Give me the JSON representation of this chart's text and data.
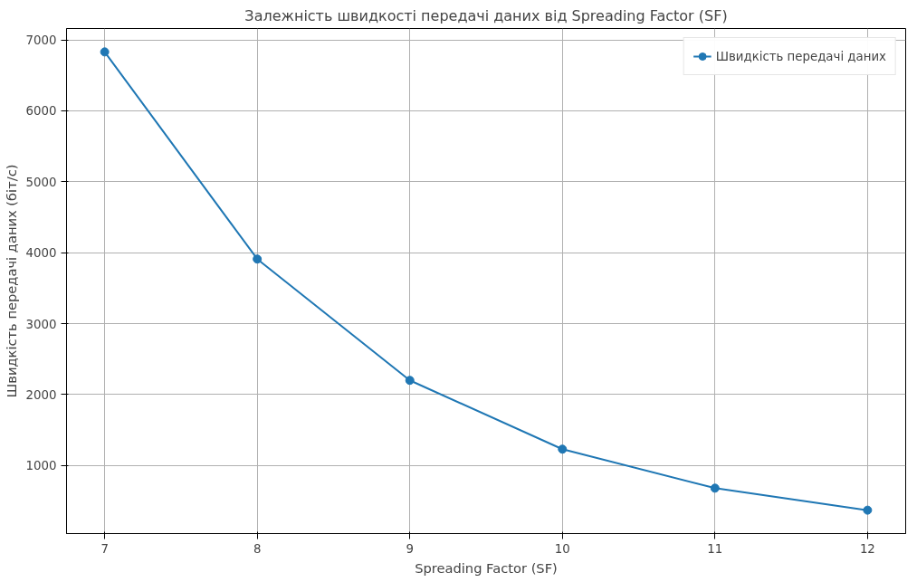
{
  "chart_data": {
    "type": "line",
    "title": "Залежність швидкості передачі даних від Spreading Factor (SF)",
    "xlabel": "Spreading Factor (SF)",
    "ylabel": "Швидкість передачі даних (біт/с)",
    "x": [
      7,
      8,
      9,
      10,
      11,
      12
    ],
    "series": [
      {
        "name": "Швидкість передачі даних",
        "color": "#1f77b4",
        "values": [
          6830,
          3910,
          2200,
          1230,
          680,
          370
        ]
      }
    ],
    "xlim": [
      6.75,
      12.25
    ],
    "xticks": [
      7,
      8,
      9,
      10,
      11,
      12
    ],
    "ylim": [
      40,
      7160
    ],
    "yticks": [
      1000,
      2000,
      3000,
      4000,
      5000,
      6000,
      7000
    ],
    "grid": true,
    "legend": "top right",
    "marker": "circle",
    "line_style": "solid"
  }
}
